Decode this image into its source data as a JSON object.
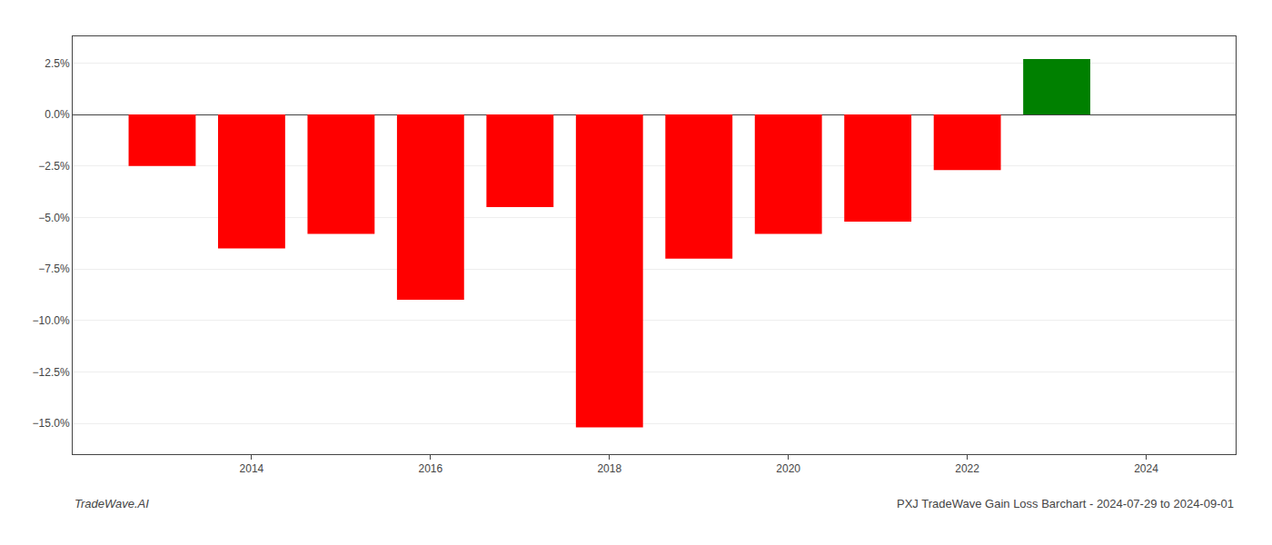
{
  "chart_data": {
    "type": "bar",
    "x": [
      2013,
      2014,
      2015,
      2016,
      2017,
      2018,
      2019,
      2020,
      2021,
      2022,
      2023
    ],
    "values": [
      -2.5,
      -6.5,
      -5.8,
      -9.0,
      -4.5,
      -15.2,
      -7.0,
      -5.8,
      -5.2,
      -2.7,
      2.7
    ],
    "colors": [
      "red",
      "red",
      "red",
      "red",
      "red",
      "red",
      "red",
      "red",
      "red",
      "red",
      "green"
    ],
    "xlim": [
      2012.0,
      2025.0
    ],
    "xticks": [
      2014,
      2016,
      2018,
      2020,
      2022,
      2024
    ],
    "ylim": [
      -16.5,
      3.8
    ],
    "yticks": [
      {
        "value": 2.5,
        "label": "2.5%"
      },
      {
        "value": 0.0,
        "label": "0.0%"
      },
      {
        "value": -2.5,
        "label": "−2.5%"
      },
      {
        "value": -5.0,
        "label": "−5.0%"
      },
      {
        "value": -7.5,
        "label": "−7.5%"
      },
      {
        "value": -10.0,
        "label": "−10.0%"
      },
      {
        "value": -12.5,
        "label": "−12.5%"
      },
      {
        "value": -15.0,
        "label": "−15.0%"
      }
    ],
    "grid": true,
    "annotations": [
      "TradeWave.AI",
      "PXJ TradeWave Gain Loss Barchart - 2024-07-29 to 2024-09-01"
    ]
  }
}
